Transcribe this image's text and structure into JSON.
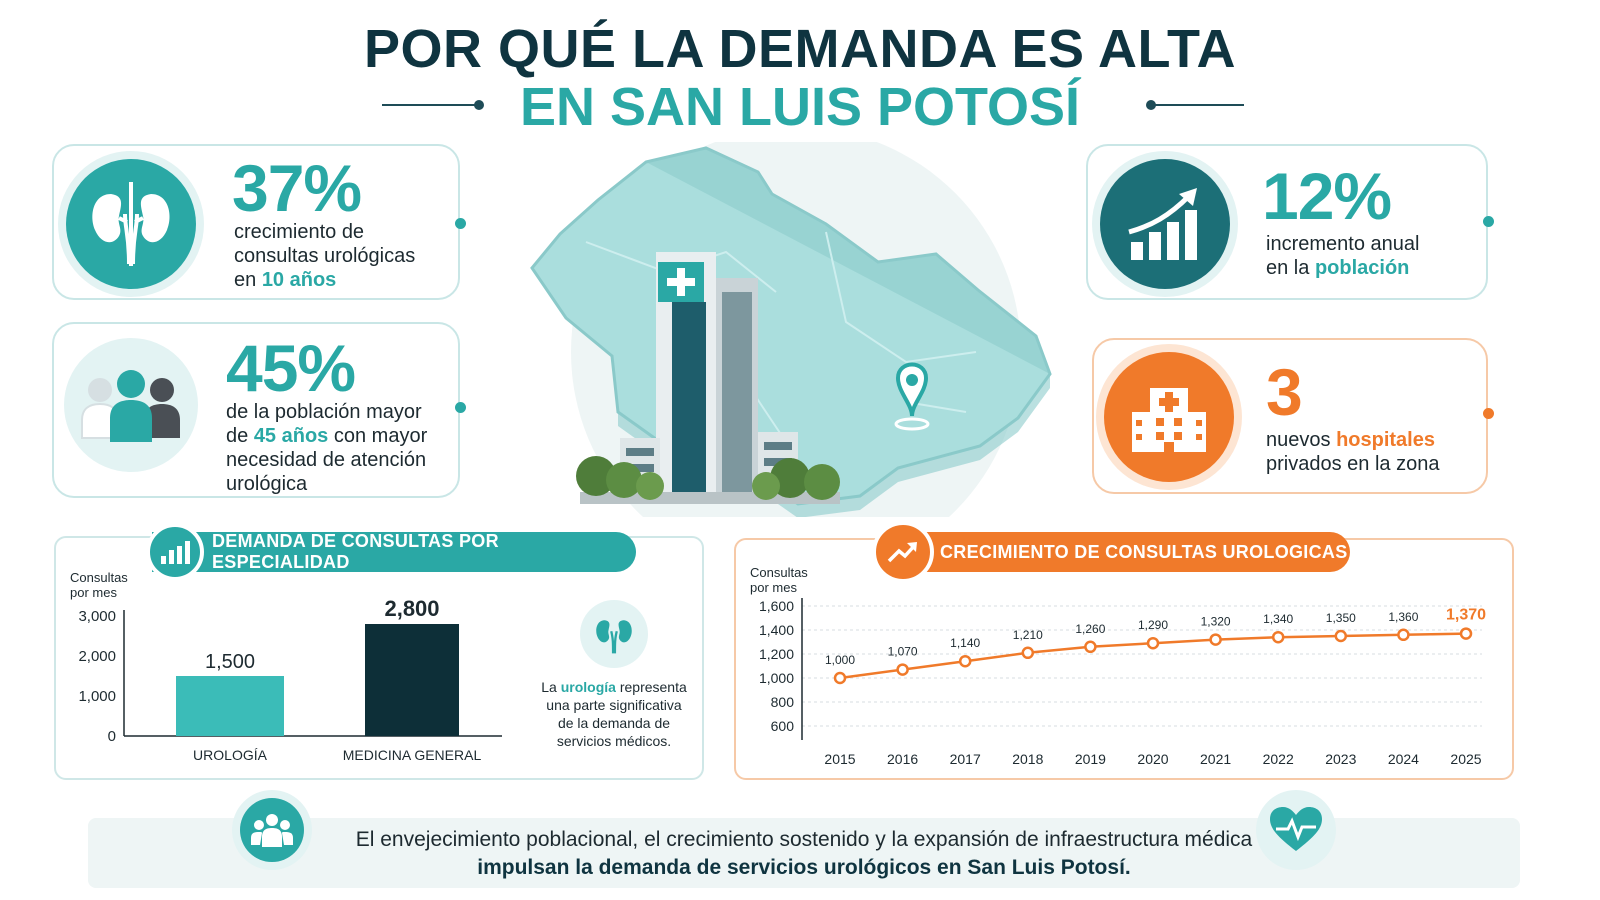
{
  "header": {
    "title_line1": "POR QUÉ LA DEMANDA ES ALTA",
    "title_line2": "EN SAN LUIS POTOSÍ"
  },
  "stats": {
    "growth": {
      "value": "37%",
      "line1": "crecimiento de",
      "line2": "consultas urológicas",
      "line3_prefix": "en",
      "line3_highlight": "10 años"
    },
    "population_age": {
      "value": "45%",
      "line1": "de la población mayor",
      "line2_prefix": "de",
      "line2_highlight": "45 años",
      "line2_suffix": "con mayor",
      "line3": "necesidad de atención",
      "line4": "urológica"
    },
    "population_growth": {
      "value": "12%",
      "line1": "incremento anual",
      "line2_prefix": "en la",
      "line2_highlight": "población"
    },
    "hospitals": {
      "value": "3",
      "line1_prefix": "nuevos",
      "line1_highlight": "hospitales",
      "line2": "privados en la zona"
    }
  },
  "bar_panel": {
    "title": "DEMANDA DE CONSULTAS POR ESPECIALIDAD",
    "axis_title_1": "Consultas",
    "axis_title_2": "por mes",
    "note_prefix": "La",
    "note_highlight": "urología",
    "note_suffix": "representa",
    "note_line2": "una parte significativa",
    "note_line3": "de la demanda de",
    "note_line4": "servicios médicos."
  },
  "line_panel": {
    "title": "CRECIMIENTO DE CONSULTAS UROLOGICAS",
    "axis_title_1": "Consultas",
    "axis_title_2": "por mes"
  },
  "footer": {
    "line1": "El envejecimiento poblacional, el crecimiento sostenido y la expansión de infraestructura médica",
    "line2": "impulsan la demanda de servicios urológicos en San Luis Potosí."
  },
  "colors": {
    "teal": "#2aa8a5",
    "navy": "#0f3440",
    "orange": "#f07a2a",
    "bar_urologia": "#3bbcb8",
    "bar_medicina": "#0d2f38"
  },
  "chart_data": [
    {
      "type": "bar",
      "title": "DEMANDA DE CONSULTAS POR ESPECIALIDAD",
      "ylabel": "Consultas por mes",
      "categories": [
        "UROLOGÍA",
        "MEDICINA GENERAL"
      ],
      "values": [
        1500,
        2800
      ],
      "value_labels": [
        "1,500",
        "2,800"
      ],
      "yticks": [
        "0",
        "1,000",
        "2,000",
        "3,000"
      ],
      "ytick_values": [
        0,
        1000,
        2000,
        3000
      ],
      "ylim": [
        0,
        3000
      ],
      "grid": false
    },
    {
      "type": "line",
      "title": "CRECIMIENTO DE CONSULTAS UROLOGICAS",
      "ylabel": "Consultas por mes",
      "x": [
        "2015",
        "2016",
        "2017",
        "2018",
        "2019",
        "2020",
        "2021",
        "2022",
        "2023",
        "2024",
        "2025"
      ],
      "values": [
        1000,
        1070,
        1140,
        1210,
        1260,
        1290,
        1320,
        1340,
        1350,
        1360,
        1370
      ],
      "value_labels": [
        "1,000",
        "1,070",
        "1,140",
        "1,210",
        "1,260",
        "1,290",
        "1,320",
        "1,340",
        "1,350",
        "1,360",
        "1,370"
      ],
      "yticks": [
        "600",
        "800",
        "1,000",
        "1,200",
        "1,400",
        "1,600"
      ],
      "ytick_values": [
        600,
        800,
        1000,
        1200,
        1400,
        1600
      ],
      "ylim": [
        600,
        1600
      ],
      "grid": true
    }
  ]
}
